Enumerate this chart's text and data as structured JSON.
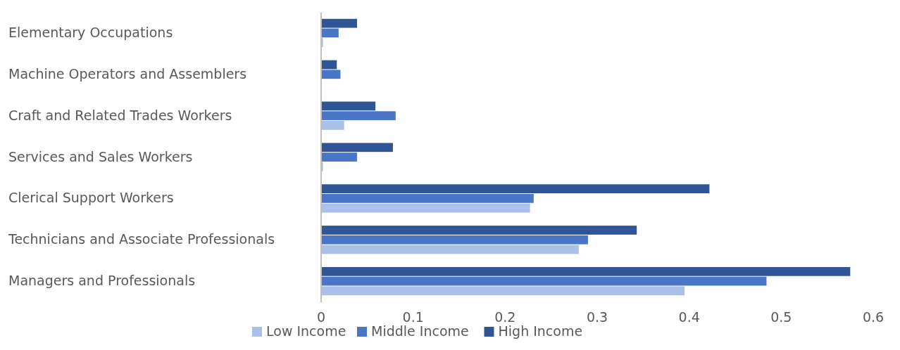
{
  "chart_data": {
    "type": "bar",
    "orientation": "horizontal",
    "categories": [
      "Elementary Occupations",
      "Machine Operators and Assemblers",
      "Craft and Related Trades Workers",
      "Services and Sales Workers",
      "Clerical Support Workers",
      "Technicians and Associate Professionals",
      "Managers and Professionals"
    ],
    "series": [
      {
        "name": "Low Income",
        "color": "#a9c0e8",
        "values": [
          0.002,
          0,
          0.025,
          0.002,
          0.227,
          0.28,
          0.395
        ]
      },
      {
        "name": "Middle Income",
        "color": "#4a76c8",
        "values": [
          0.019,
          0.021,
          0.081,
          0.039,
          0.231,
          0.29,
          0.484
        ]
      },
      {
        "name": "High Income",
        "color": "#2f5597",
        "values": [
          0.039,
          0.017,
          0.059,
          0.078,
          0.422,
          0.343,
          0.575
        ]
      }
    ],
    "xlim": [
      0,
      0.6
    ],
    "xticks": [
      0,
      0.1,
      0.2,
      0.3,
      0.4,
      0.5,
      0.6
    ],
    "grid": false,
    "legend": "bottom"
  }
}
